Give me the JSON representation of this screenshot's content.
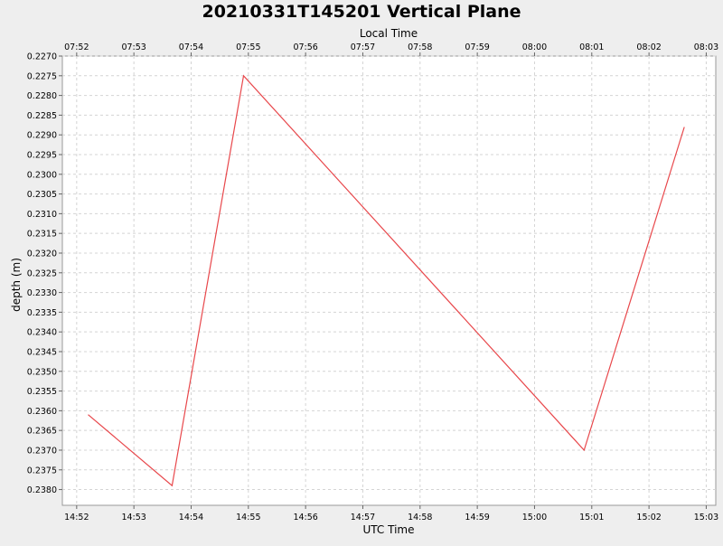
{
  "chart_data": {
    "type": "line",
    "title": "20210331T145201 Vertical Plane",
    "xlabel": "UTC Time",
    "x2label": "Local Time",
    "ylabel": "depth (m)",
    "grid": true,
    "y_inverted": true,
    "ylim": [
      0.227,
      0.2384
    ],
    "xlim": [
      "14:51:45",
      "15:03:10"
    ],
    "ytick_labels": [
      "0.2270",
      "0.2275",
      "0.2280",
      "0.2285",
      "0.2290",
      "0.2295",
      "0.2300",
      "0.2305",
      "0.2310",
      "0.2315",
      "0.2320",
      "0.2325",
      "0.2330",
      "0.2335",
      "0.2340",
      "0.2345",
      "0.2350",
      "0.2355",
      "0.2360",
      "0.2365",
      "0.2370",
      "0.2375",
      "0.2380"
    ],
    "xtick_labels_bottom": [
      "14:52",
      "14:53",
      "14:54",
      "14:55",
      "14:56",
      "14:57",
      "14:58",
      "14:59",
      "15:00",
      "15:01",
      "15:02",
      "15:03"
    ],
    "xtick_labels_top": [
      "07:52",
      "07:53",
      "07:54",
      "07:55",
      "07:56",
      "07:57",
      "07:58",
      "07:59",
      "08:00",
      "08:01",
      "08:02",
      "08:03"
    ],
    "series": [
      {
        "color": "#e8474b",
        "x": [
          "14:52:12",
          "14:53:40",
          "14:54:55",
          "15:00:52",
          "15:02:37"
        ],
        "y": [
          0.2361,
          0.2379,
          0.2275,
          0.237,
          0.2288
        ]
      }
    ]
  }
}
